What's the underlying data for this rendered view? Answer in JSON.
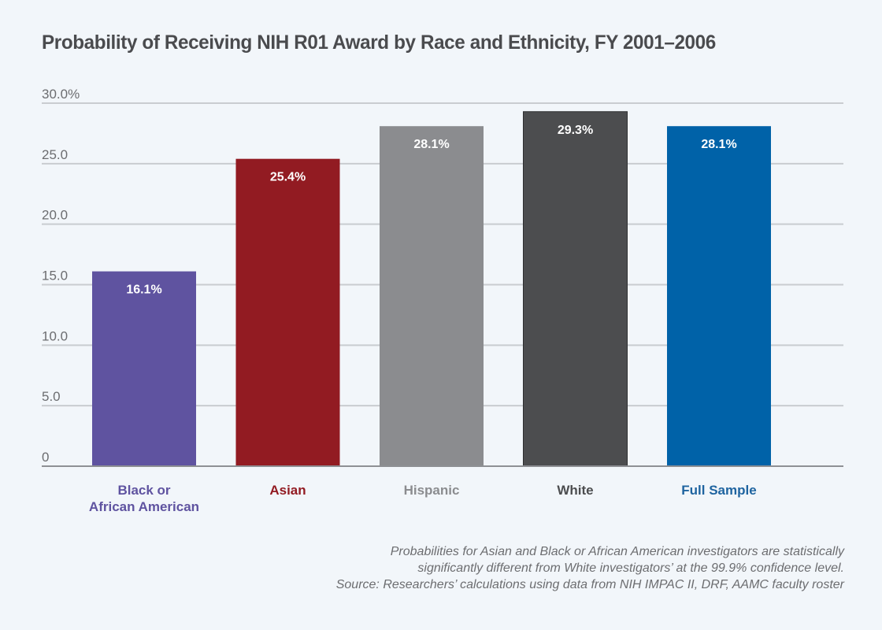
{
  "chart_data": {
    "type": "bar",
    "title": "Probability of Receiving NIH R01 Award by Race and Ethnicity, FY 2001–2006",
    "xlabel": "",
    "ylabel": "",
    "ylim": [
      0,
      30
    ],
    "grid": true,
    "y_ticks": [
      {
        "value": 0,
        "label": "0"
      },
      {
        "value": 5,
        "label": "5.0"
      },
      {
        "value": 10,
        "label": "10.0"
      },
      {
        "value": 15,
        "label": "15.0"
      },
      {
        "value": 20,
        "label": "20.0"
      },
      {
        "value": 25,
        "label": "25.0"
      },
      {
        "value": 30,
        "label": "30.0%"
      }
    ],
    "categories": [
      {
        "lines": [
          "Black or",
          "African American"
        ],
        "color": "#5f53a0",
        "label_color": "#5f53a0"
      },
      {
        "lines": [
          "Asian"
        ],
        "color": "#921b22",
        "label_color": "#921b22"
      },
      {
        "lines": [
          "Hispanic"
        ],
        "color": "#8b8c8f",
        "label_color": "#8b8c8f"
      },
      {
        "lines": [
          "White"
        ],
        "color": "#4c4d4f",
        "label_color": "#4c4d4f"
      },
      {
        "lines": [
          "Full Sample"
        ],
        "color": "#0062a8",
        "label_color": "#1f64a0"
      }
    ],
    "values": [
      16.1,
      25.4,
      28.1,
      29.3,
      28.1
    ],
    "data_labels": [
      "16.1%",
      "25.4%",
      "28.1%",
      "29.3%",
      "28.1%"
    ],
    "notes": [
      "Probabilities for Asian and Black or African American investigators are statistically",
      "significantly different from White investigators’ at the 99.9% confidence level.",
      "Source: Researchers’ calculations using data from NIH IMPAC II, DRF, AAMC faculty roster"
    ]
  }
}
